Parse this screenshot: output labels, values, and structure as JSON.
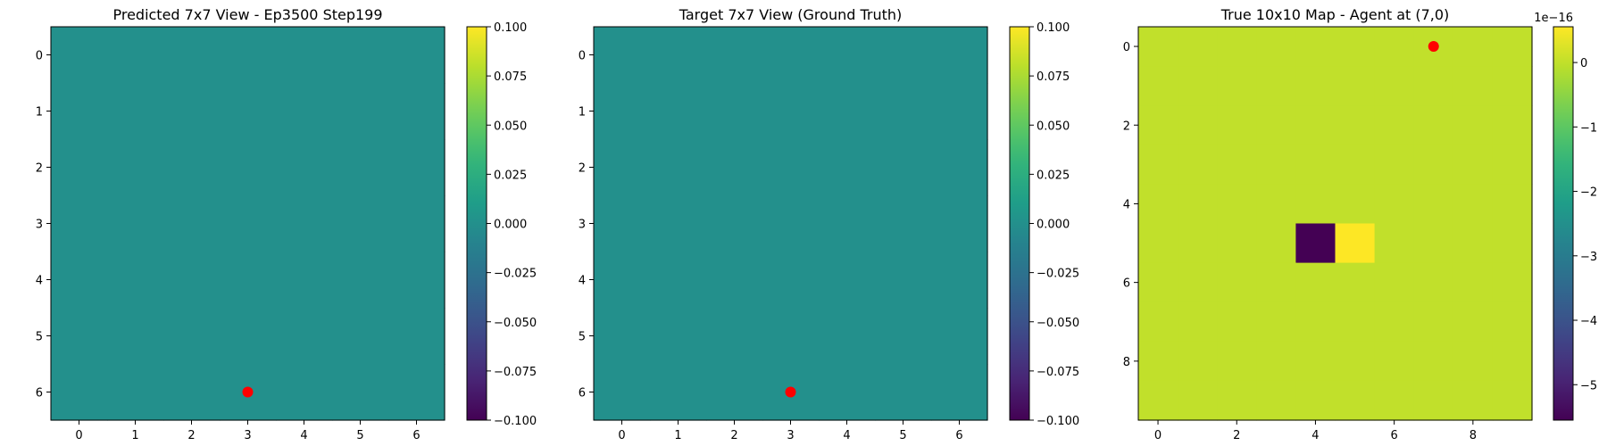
{
  "chart_data": [
    {
      "type": "heatmap",
      "title": "Predicted 7x7 View - Ep3500 Step199",
      "rows": 7,
      "cols": 7,
      "xticks": [
        "0",
        "1",
        "2",
        "3",
        "4",
        "5",
        "6"
      ],
      "yticks": [
        "0",
        "1",
        "2",
        "3",
        "4",
        "5",
        "6"
      ],
      "values": [
        [
          0,
          0,
          0,
          0,
          0,
          0,
          0
        ],
        [
          0,
          0,
          0,
          0,
          0,
          0,
          0
        ],
        [
          0,
          0,
          0,
          0,
          0,
          0,
          0
        ],
        [
          0,
          0,
          0,
          0,
          0,
          0,
          0
        ],
        [
          0,
          0,
          0,
          0,
          0,
          0,
          0
        ],
        [
          0,
          0,
          0,
          0,
          0,
          0,
          0
        ],
        [
          0,
          0,
          0,
          0,
          0,
          0,
          0
        ]
      ],
      "marker": {
        "x": 3,
        "y": 6,
        "color": "#ff0000"
      },
      "colorbar": {
        "vmin": -0.1,
        "vmax": 0.1,
        "ticks": [
          0.1,
          0.075,
          0.05,
          0.025,
          0.0,
          -0.025,
          -0.05,
          -0.075,
          -0.1
        ],
        "labels": [
          "0.100",
          "0.075",
          "0.050",
          "0.025",
          "0.000",
          "−0.025",
          "−0.050",
          "−0.075",
          "−0.100"
        ],
        "offset_label": ""
      },
      "colormap": "viridis"
    },
    {
      "type": "heatmap",
      "title": "Target 7x7 View (Ground Truth)",
      "rows": 7,
      "cols": 7,
      "xticks": [
        "0",
        "1",
        "2",
        "3",
        "4",
        "5",
        "6"
      ],
      "yticks": [
        "0",
        "1",
        "2",
        "3",
        "4",
        "5",
        "6"
      ],
      "values": [
        [
          0,
          0,
          0,
          0,
          0,
          0,
          0
        ],
        [
          0,
          0,
          0,
          0,
          0,
          0,
          0
        ],
        [
          0,
          0,
          0,
          0,
          0,
          0,
          0
        ],
        [
          0,
          0,
          0,
          0,
          0,
          0,
          0
        ],
        [
          0,
          0,
          0,
          0,
          0,
          0,
          0
        ],
        [
          0,
          0,
          0,
          0,
          0,
          0,
          0
        ],
        [
          0,
          0,
          0,
          0,
          0,
          0,
          0
        ]
      ],
      "marker": {
        "x": 3,
        "y": 6,
        "color": "#ff0000"
      },
      "colorbar": {
        "vmin": -0.1,
        "vmax": 0.1,
        "ticks": [
          0.1,
          0.075,
          0.05,
          0.025,
          0.0,
          -0.025,
          -0.05,
          -0.075,
          -0.1
        ],
        "labels": [
          "0.100",
          "0.075",
          "0.050",
          "0.025",
          "0.000",
          "−0.025",
          "−0.050",
          "−0.075",
          "−0.100"
        ],
        "offset_label": ""
      },
      "colormap": "viridis"
    },
    {
      "type": "heatmap",
      "title": "True 10x10 Map - Agent at (7,0)",
      "rows": 10,
      "cols": 10,
      "xticks": [
        "0",
        "2",
        "4",
        "6",
        "8"
      ],
      "xtick_positions": [
        0,
        2,
        4,
        6,
        8
      ],
      "yticks": [
        "0",
        "2",
        "4",
        "6",
        "8"
      ],
      "ytick_positions": [
        0,
        2,
        4,
        6,
        8
      ],
      "values": [
        [
          0,
          0,
          0,
          0,
          0,
          0,
          0,
          0,
          0,
          0
        ],
        [
          0,
          0,
          0,
          0,
          0,
          0,
          0,
          0,
          0,
          0
        ],
        [
          0,
          0,
          0,
          0,
          0,
          0,
          0,
          0,
          0,
          0
        ],
        [
          0,
          0,
          0,
          0,
          0,
          0,
          0,
          0,
          0,
          0
        ],
        [
          0,
          0,
          0,
          0,
          0,
          0,
          0,
          0,
          0,
          0
        ],
        [
          0,
          0,
          0,
          0,
          -5.55,
          0.555,
          0,
          0,
          0,
          0
        ],
        [
          0,
          0,
          0,
          0,
          0,
          0,
          0,
          0,
          0,
          0
        ],
        [
          0,
          0,
          0,
          0,
          0,
          0,
          0,
          0,
          0,
          0
        ],
        [
          0,
          0,
          0,
          0,
          0,
          0,
          0,
          0,
          0,
          0
        ],
        [
          0,
          0,
          0,
          0,
          0,
          0,
          0,
          0,
          0,
          0
        ]
      ],
      "marker": {
        "x": 7,
        "y": 0,
        "color": "#ff0000"
      },
      "colorbar": {
        "vmin": -5.55,
        "vmax": 0.555,
        "ticks": [
          0,
          -1,
          -2,
          -3,
          -4,
          -5
        ],
        "labels": [
          "0",
          "−1",
          "−2",
          "−3",
          "−4",
          "−5"
        ],
        "offset_label": "1e−16"
      },
      "colormap": "viridis"
    }
  ]
}
